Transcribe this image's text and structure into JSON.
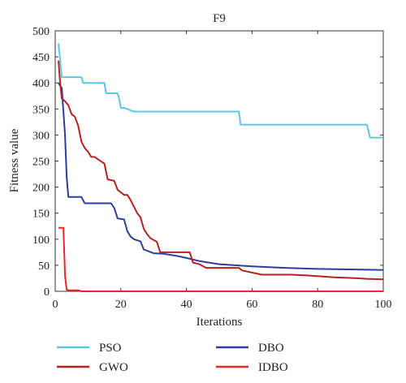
{
  "chart_data": {
    "type": "line",
    "title": "F9",
    "xlabel": "Iterations",
    "ylabel": "Fitness value",
    "xlim": [
      0,
      100
    ],
    "ylim": [
      0,
      500
    ],
    "xticks": [
      0,
      20,
      40,
      60,
      80,
      100
    ],
    "yticks": [
      0,
      50,
      100,
      150,
      200,
      250,
      300,
      350,
      400,
      450,
      500
    ],
    "grid": false,
    "legend_position": "below",
    "series": [
      {
        "name": "PSO",
        "color": "#5bc8e6",
        "x": [
          1,
          1.5,
          2,
          8,
          8.5,
          15,
          15.5,
          19,
          19.5,
          20,
          21,
          22,
          23,
          24,
          56,
          56.5,
          72,
          95,
          96,
          100
        ],
        "y": [
          476,
          445,
          411,
          411,
          400,
          400,
          380,
          380,
          370,
          352,
          352,
          350,
          347,
          345,
          345,
          320,
          320,
          320,
          295,
          295
        ]
      },
      {
        "name": "GWO",
        "color": "#b22222",
        "x": [
          1,
          1.5,
          2,
          3,
          4,
          5,
          6,
          7,
          8,
          9,
          10,
          11,
          12,
          15,
          16,
          18,
          19,
          20,
          21,
          22,
          23,
          25,
          26,
          27,
          28,
          29,
          31,
          32,
          41,
          42,
          44,
          46,
          56,
          57,
          63,
          72,
          78,
          85,
          92,
          95,
          100
        ],
        "y": [
          443,
          400,
          370,
          365,
          357,
          340,
          335,
          318,
          287,
          275,
          268,
          258,
          258,
          245,
          215,
          212,
          195,
          190,
          185,
          185,
          175,
          150,
          142,
          120,
          110,
          102,
          95,
          75,
          75,
          55,
          52,
          45,
          45,
          40,
          32,
          32,
          30,
          27,
          25,
          24,
          23
        ]
      },
      {
        "name": "DBO",
        "color": "#2e3d9e",
        "x": [
          1,
          2,
          3,
          3.5,
          4,
          8,
          9,
          17,
          18,
          19,
          21,
          22,
          23,
          24,
          26,
          27,
          28,
          30,
          33,
          37,
          40,
          44,
          50,
          60,
          70,
          80,
          90,
          100
        ],
        "y": [
          400,
          390,
          300,
          220,
          181,
          181,
          169,
          169,
          160,
          140,
          138,
          115,
          105,
          100,
          96,
          80,
          78,
          73,
          72,
          68,
          64,
          58,
          52,
          48,
          45,
          43,
          42,
          41
        ]
      },
      {
        "name": "IDBO",
        "color": "#e8282a",
        "x": [
          1,
          2.5,
          3,
          3.5,
          4,
          7,
          8,
          100
        ],
        "y": [
          122,
          122,
          30,
          3,
          2,
          2,
          0,
          0
        ]
      }
    ]
  }
}
